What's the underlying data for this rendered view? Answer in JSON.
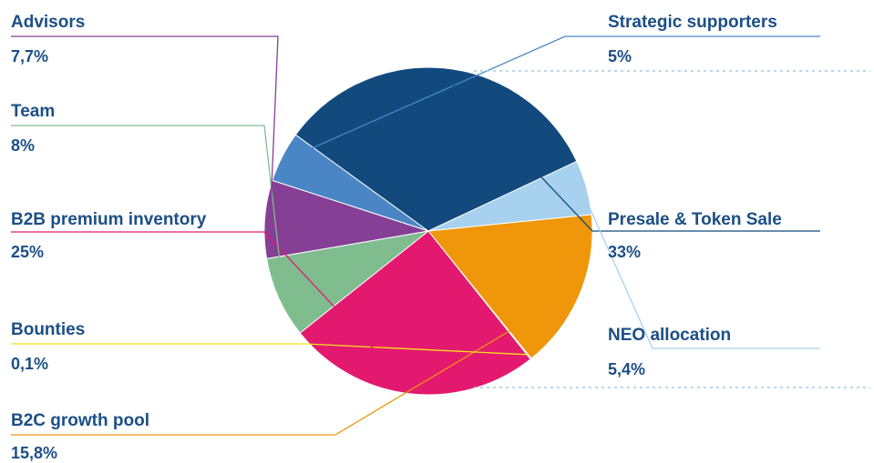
{
  "chart_data": {
    "type": "pie",
    "title": "",
    "slices": [
      {
        "label": "Strategic supporters",
        "value_label": "5%",
        "value": 5,
        "color": "#4a86c6"
      },
      {
        "label": "Presale & Token Sale",
        "value_label": "33%",
        "value": 33,
        "color": "#124a7e"
      },
      {
        "label": "NEO allocation",
        "value_label": "5,4%",
        "value": 5.4,
        "color": "#a7d1ee"
      },
      {
        "label": "B2C growth pool",
        "value_label": "15,8%",
        "value": 15.8,
        "color": "#f0960a"
      },
      {
        "label": "Bounties",
        "value_label": "0,1%",
        "value": 0.1,
        "color": "#f7e21c"
      },
      {
        "label": "B2B premium inventory",
        "value_label": "25%",
        "value": 25,
        "color": "#e3196f"
      },
      {
        "label": "Team",
        "value_label": "8%",
        "value": 8,
        "color": "#7fbd8f"
      },
      {
        "label": "Advisors",
        "value_label": "7,7%",
        "value": 7.7,
        "color": "#853f95"
      }
    ],
    "legend": "none"
  }
}
